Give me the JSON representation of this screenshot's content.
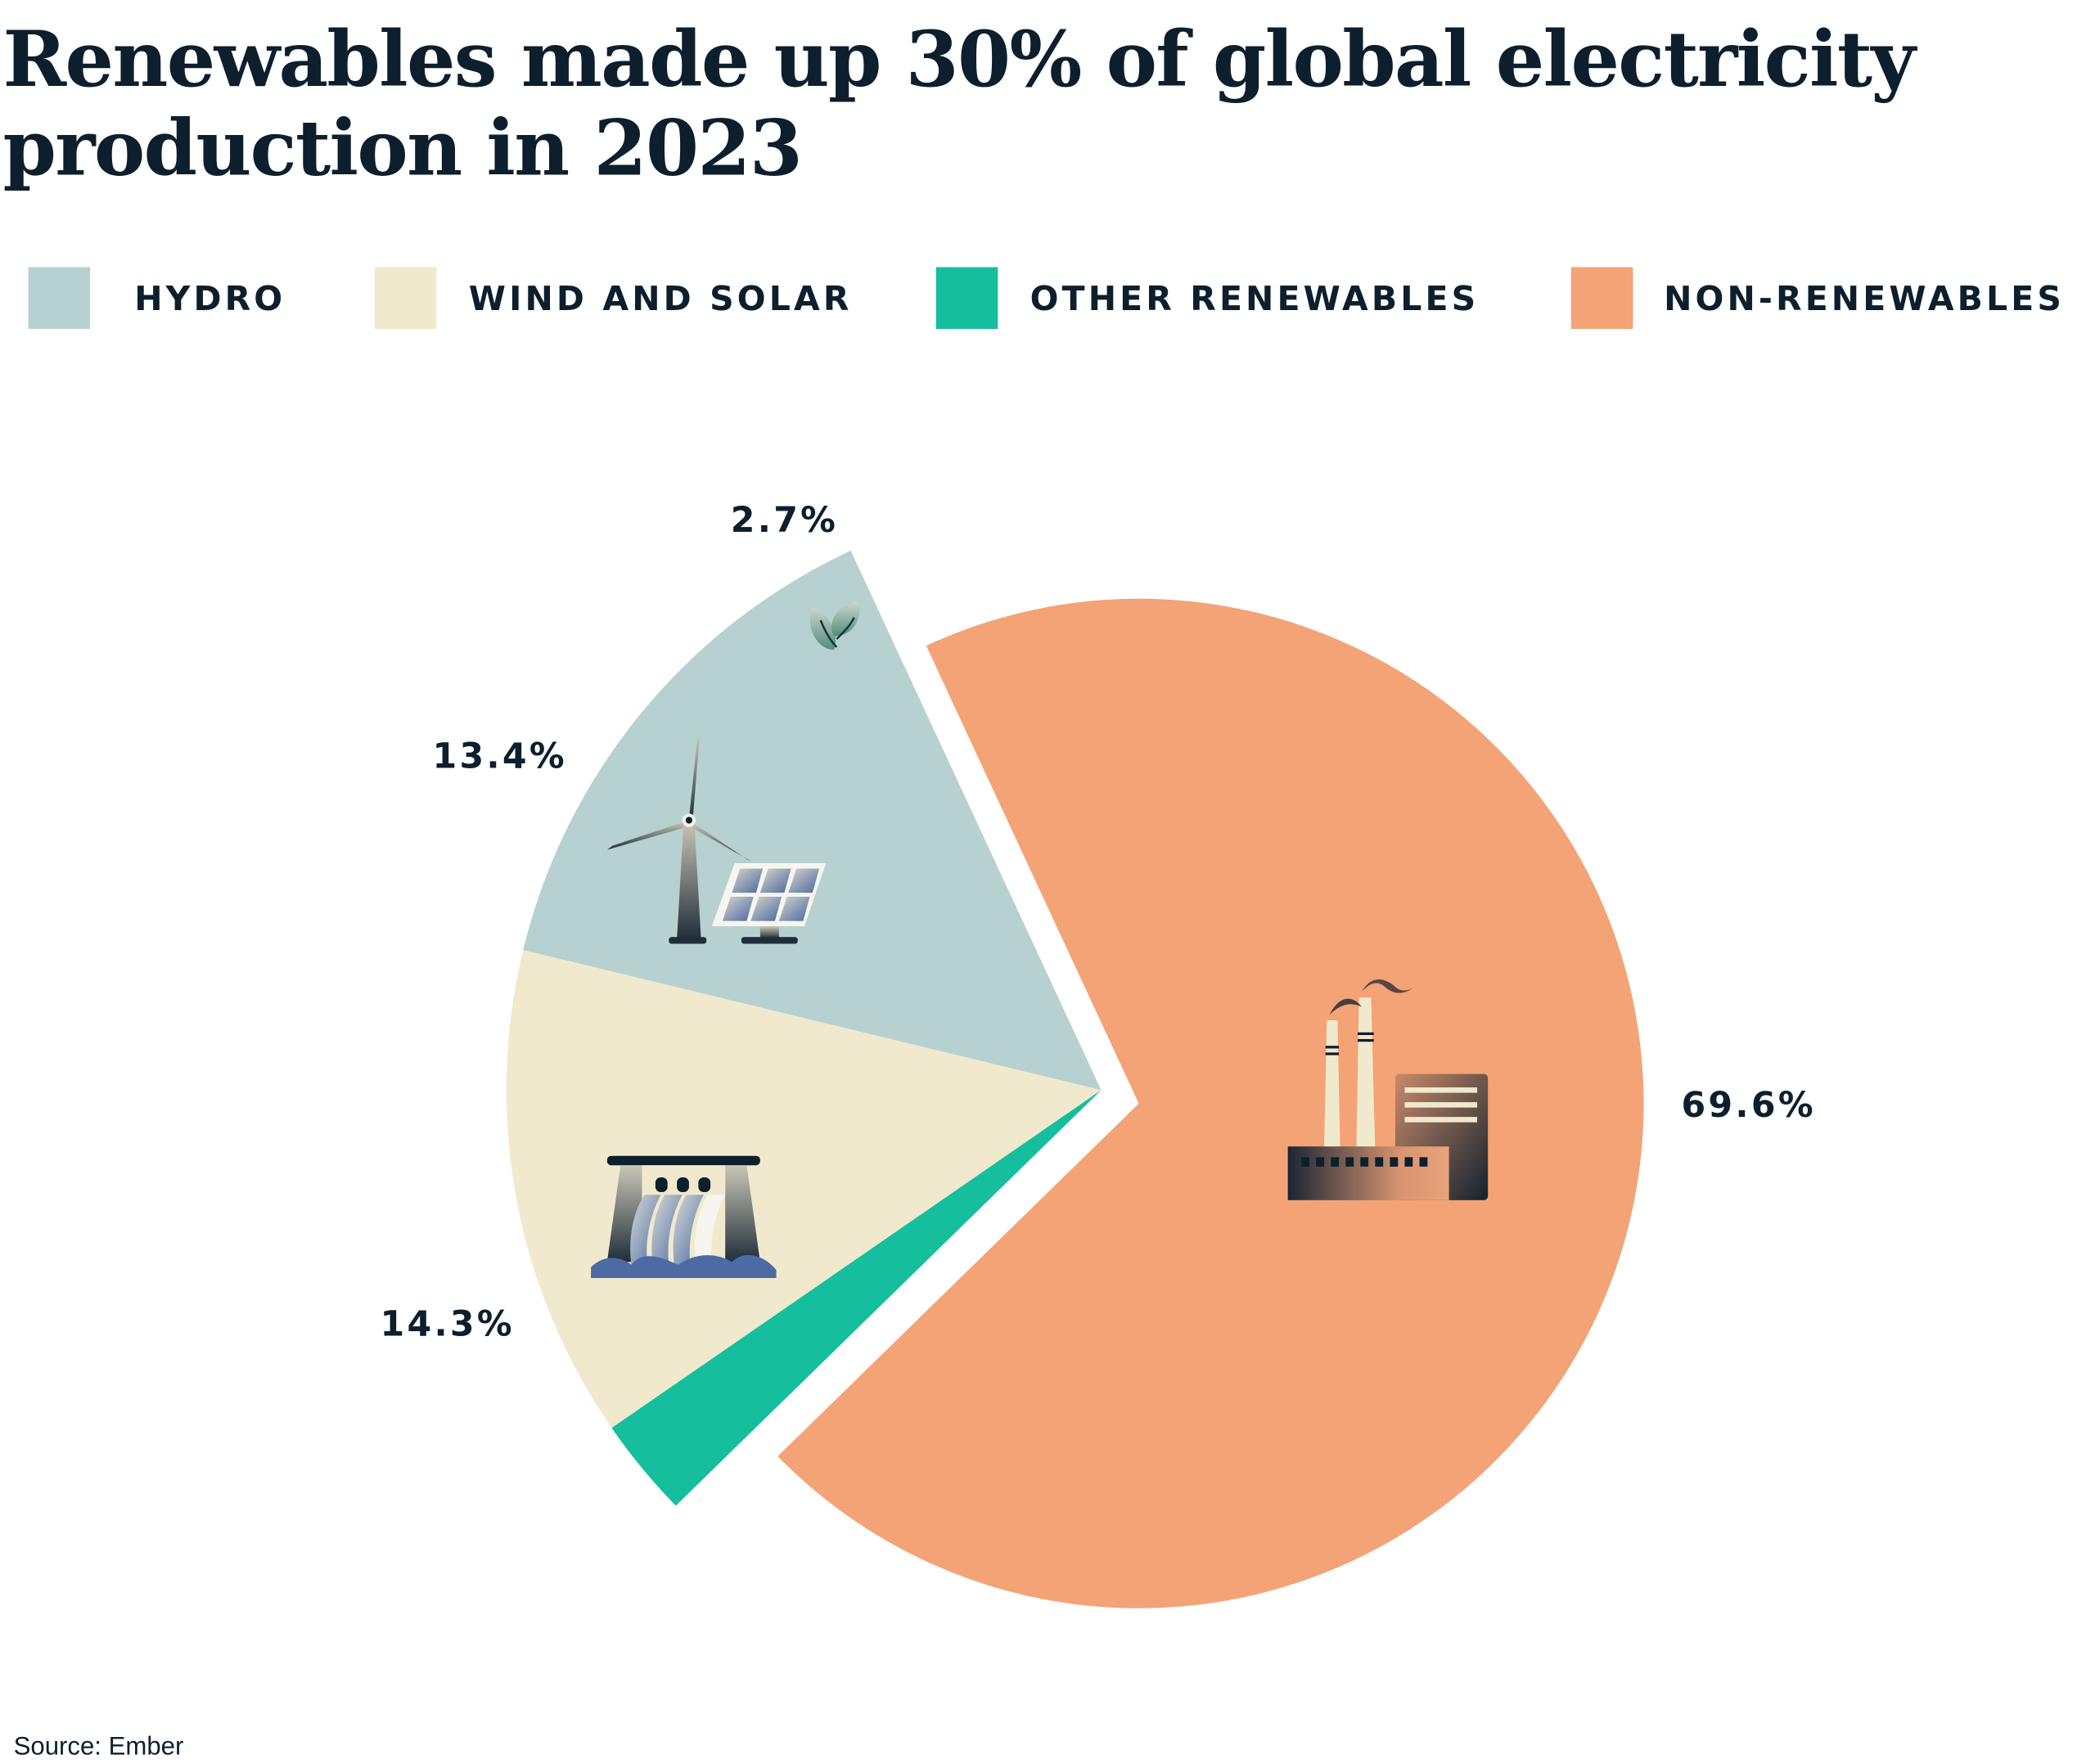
{
  "chart_data": {
    "type": "pie",
    "title": "Renewables made up 30% of global electricity production in 2023",
    "title_lines": [
      "Renewables made up 30% of global electricity",
      "production in 2023"
    ],
    "legend_placement": "top",
    "slices": [
      {
        "name": "HYDRO",
        "value": 14.3,
        "label": "14.3%",
        "color": "#b7d1d0",
        "icon": "hydro-dam-icon"
      },
      {
        "name": "WIND AND SOLAR",
        "value": 13.4,
        "label": "13.4%",
        "color": "#f0e9cd",
        "icon": "wind-solar-icon"
      },
      {
        "name": "OTHER RENEWABLES",
        "value": 2.7,
        "label": "2.7%",
        "color": "#15be9c",
        "icon": "leaf-icon"
      },
      {
        "name": "NON-RENEWABLES",
        "value": 69.6,
        "label": "69.6%",
        "color": "#f3a376",
        "icon": "factory-icon",
        "exploded": true
      }
    ],
    "source": "Source: Ember"
  }
}
